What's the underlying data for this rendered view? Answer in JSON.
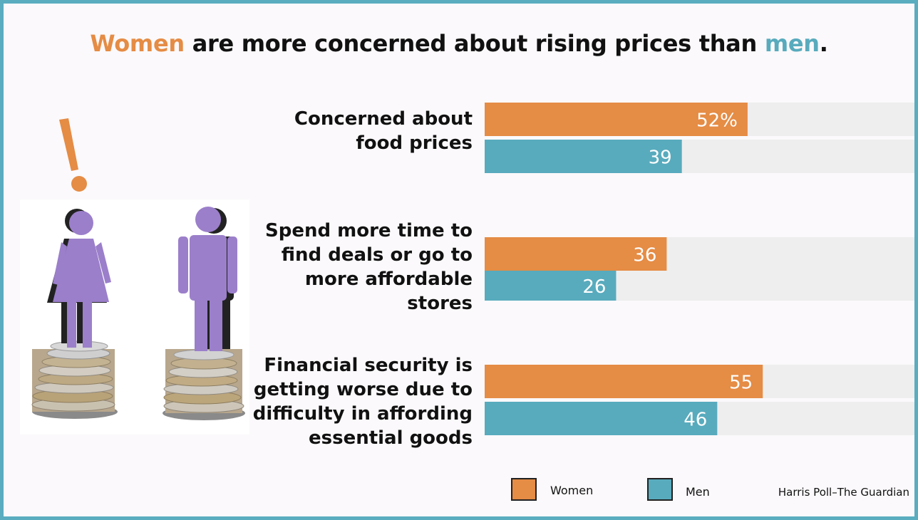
{
  "title": {
    "women_word": "Women",
    "middle": " are more concerned about rising prices than ",
    "men_word": "men",
    "end": "."
  },
  "source": "Harris Poll–The Guardian",
  "colors": {
    "women": "#e58c45",
    "men": "#58abbd",
    "track": "#eeeeee"
  },
  "legend": [
    "Women",
    "Men"
  ],
  "chart_data": {
    "type": "bar",
    "orientation": "horizontal",
    "categories": [
      "Concerned about food prices",
      "Spend more time to find deals or go to more affordable stores",
      "Financial security is getting worse due to difficulty in affording essential goods"
    ],
    "category_lines": [
      [
        "Concerned about",
        "food prices"
      ],
      [
        "Spend more time to",
        "find deals or go to",
        "more affordable",
        "stores"
      ],
      [
        "Financial security is",
        "getting worse due to",
        "difficulty in affording",
        "essential goods"
      ]
    ],
    "series": [
      {
        "name": "Women",
        "values": [
          52,
          36,
          55
        ],
        "labels": [
          "52%",
          "36",
          "55"
        ]
      },
      {
        "name": "Men",
        "values": [
          39,
          26,
          46
        ],
        "labels": [
          "39",
          "26",
          "46"
        ]
      }
    ],
    "xlim": [
      0,
      85
    ],
    "legend_position": "bottom"
  }
}
